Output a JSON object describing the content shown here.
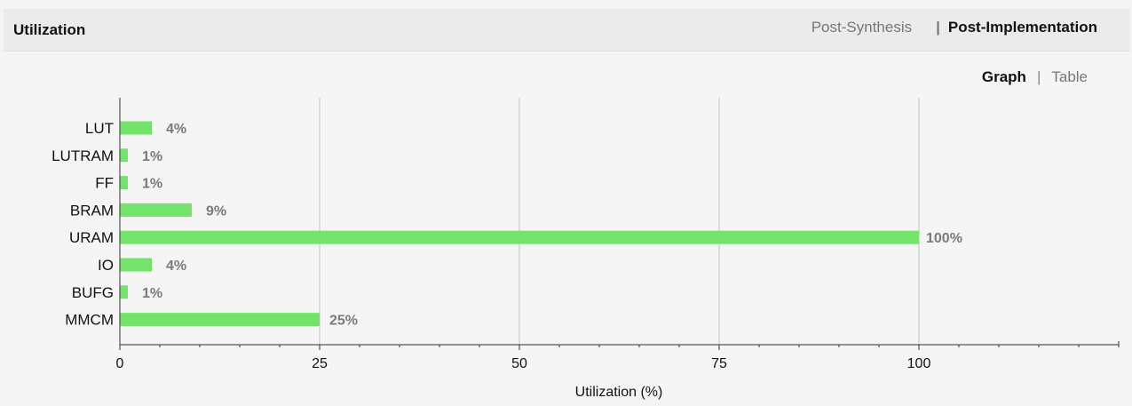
{
  "header": {
    "title": "Utilization",
    "tabs": [
      {
        "label": "Post-Synthesis",
        "active": false
      },
      {
        "label": "Post-Implementation",
        "active": true
      }
    ],
    "tab_separator": "|"
  },
  "view_switch": {
    "options": [
      {
        "label": "Graph",
        "active": true
      },
      {
        "label": "Table",
        "active": false
      }
    ],
    "separator": "|"
  },
  "colors": {
    "bar": "#74e36a",
    "value_label": "#7a7a7a",
    "grid": "#c4c4c4",
    "axis": "#333333"
  },
  "chart_data": {
    "type": "bar",
    "orientation": "horizontal",
    "categories": [
      "LUT",
      "LUTRAM",
      "FF",
      "BRAM",
      "URAM",
      "IO",
      "BUFG",
      "MMCM"
    ],
    "values": [
      4,
      1,
      1,
      9,
      100,
      4,
      1,
      25
    ],
    "value_labels": [
      "4%",
      "1%",
      "1%",
      "9%",
      "100%",
      "4%",
      "1%",
      "25%"
    ],
    "xlabel": "Utilization (%)",
    "ylabel": "",
    "xlim": [
      0,
      125
    ],
    "xticks": [
      0,
      25,
      50,
      75,
      100
    ],
    "minor_tick_step": 5,
    "grid": true,
    "legend": "none"
  }
}
